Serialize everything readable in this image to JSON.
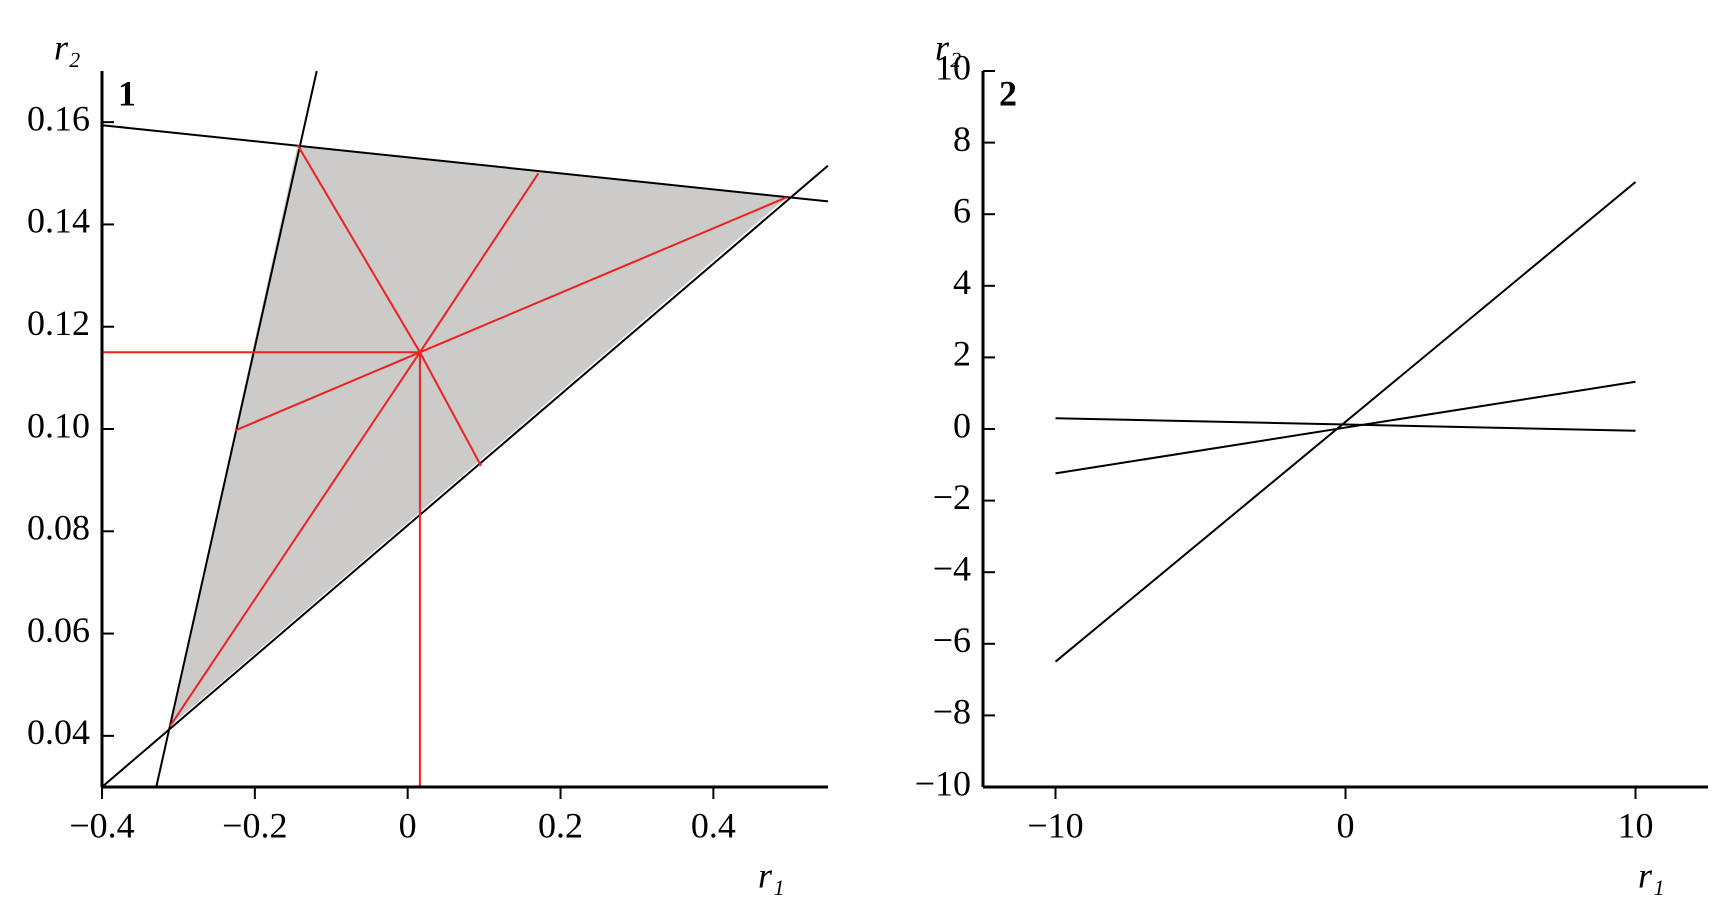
{
  "chart_data": [
    {
      "type": "line",
      "panel_label": "1",
      "xlabel": "r₁",
      "ylabel": "r₂",
      "xlim": [
        -0.4,
        0.55
      ],
      "ylim": [
        0.03,
        0.17
      ],
      "xticks": [
        {
          "value": -0.4,
          "label": "−0.4"
        },
        {
          "value": -0.2,
          "label": "−0.2"
        },
        0,
        0.2,
        0.4
      ],
      "yticks": [
        0.04,
        0.06,
        0.08,
        {
          "value": 0.1,
          "label": "0.10"
        },
        0.12,
        0.14,
        0.16
      ],
      "region": {
        "x": [
          -0.144,
          0.496,
          -0.311
        ],
        "y": [
          0.1555,
          0.1453,
          0.0419
        ],
        "color": "#cdcaca"
      },
      "series": [
        {
          "color": "#000000",
          "x": [
            -0.4,
            0.55
          ],
          "values": [
            0.1594,
            0.1445
          ]
        },
        {
          "color": "#000000",
          "x": [
            -0.329,
            -0.119
          ],
          "values": [
            0.03,
            0.17
          ]
        },
        {
          "color": "#000000",
          "x": [
            -0.4,
            0.55
          ],
          "values": [
            0.03,
            0.1515
          ]
        },
        {
          "color": "#ee2020",
          "x": [
            -0.4,
            0.016
          ],
          "values": [
            0.115,
            0.115
          ]
        },
        {
          "color": "#ee2020",
          "x": [
            0.016,
            0.016
          ],
          "values": [
            0.03,
            0.115
          ]
        },
        {
          "color": "#ee2020",
          "x": [
            0.016,
            -0.144
          ],
          "values": [
            0.115,
            0.1555
          ]
        },
        {
          "color": "#ee2020",
          "x": [
            0.016,
            0.496
          ],
          "values": [
            0.115,
            0.1453
          ]
        },
        {
          "color": "#ee2020",
          "x": [
            0.016,
            -0.311
          ],
          "values": [
            0.115,
            0.0419
          ]
        },
        {
          "color": "#ee2020",
          "x": [
            0.016,
            0.171
          ],
          "values": [
            0.115,
            0.15
          ]
        },
        {
          "color": "#ee2020",
          "x": [
            0.016,
            -0.226
          ],
          "values": [
            0.115,
            0.0997
          ]
        },
        {
          "color": "#ee2020",
          "x": [
            0.016,
            0.096
          ],
          "values": [
            0.115,
            0.0928
          ]
        }
      ]
    },
    {
      "type": "line",
      "panel_label": "2",
      "xlabel": "r₁",
      "ylabel": "r₂",
      "xlim": [
        -12.5,
        12.5
      ],
      "ylim": [
        -10,
        10
      ],
      "xticks": [
        {
          "value": -10,
          "label": "−10"
        },
        0,
        10
      ],
      "yticks": [
        {
          "value": -10,
          "label": "−10"
        },
        {
          "value": -8,
          "label": "−8"
        },
        {
          "value": -6,
          "label": "−6"
        },
        {
          "value": -4,
          "label": "−4"
        },
        {
          "value": -2,
          "label": "−2"
        },
        0,
        2,
        4,
        6,
        8,
        10
      ],
      "series": [
        {
          "color": "#000000",
          "x": [
            -10,
            10
          ],
          "values": [
            -6.5,
            6.9
          ]
        },
        {
          "color": "#000000",
          "x": [
            -10,
            10
          ],
          "values": [
            -1.24,
            1.32
          ]
        },
        {
          "color": "#000000",
          "x": [
            -10,
            10
          ],
          "values": [
            0.3,
            -0.05
          ]
        }
      ]
    }
  ]
}
